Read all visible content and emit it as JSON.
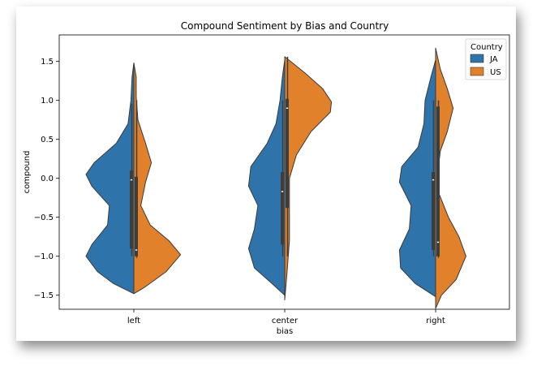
{
  "chart_data": {
    "type": "violin",
    "title": "Compound Sentiment by Bias and Country",
    "xlabel": "bias",
    "ylabel": "compound",
    "categories": [
      "left",
      "center",
      "right"
    ],
    "ylim": [
      -1.68,
      1.84
    ],
    "yticks": [
      -1.5,
      -1.0,
      -0.5,
      0.0,
      0.5,
      1.0,
      1.5
    ],
    "ytick_labels": [
      "−1.5",
      "−1.0",
      "−0.5",
      "0.0",
      "0.5",
      "1.0",
      "1.5"
    ],
    "legend": {
      "title": "Country",
      "position": "top-right"
    },
    "series": [
      {
        "name": "JA",
        "color": "#2e74ab",
        "violins": [
          {
            "ymin": -1.48,
            "ymax": 1.48,
            "median": -0.02,
            "q1": -0.9,
            "q3": 0.1,
            "whisker_low": -1.0,
            "whisker_high": 0.96,
            "profile": [
              [
                -1.48,
                0
              ],
              [
                -1.35,
                0.35
              ],
              [
                -1.2,
                0.62
              ],
              [
                -1.0,
                0.82
              ],
              [
                -0.85,
                0.72
              ],
              [
                -0.6,
                0.45
              ],
              [
                -0.35,
                0.42
              ],
              [
                -0.1,
                0.72
              ],
              [
                0.05,
                0.82
              ],
              [
                0.2,
                0.68
              ],
              [
                0.45,
                0.3
              ],
              [
                0.7,
                0.1
              ],
              [
                1.0,
                0.05
              ],
              [
                1.3,
                0.03
              ],
              [
                1.48,
                0
              ]
            ]
          },
          {
            "ymin": -1.5,
            "ymax": 1.52,
            "median": -0.17,
            "q1": -0.85,
            "q3": 0.08,
            "whisker_low": -1.0,
            "whisker_high": 1.0,
            "profile": [
              [
                -1.5,
                0
              ],
              [
                -1.35,
                0.22
              ],
              [
                -1.15,
                0.52
              ],
              [
                -0.9,
                0.62
              ],
              [
                -0.65,
                0.52
              ],
              [
                -0.35,
                0.46
              ],
              [
                -0.1,
                0.62
              ],
              [
                0.15,
                0.58
              ],
              [
                0.45,
                0.3
              ],
              [
                0.7,
                0.15
              ],
              [
                1.0,
                0.08
              ],
              [
                1.3,
                0.04
              ],
              [
                1.52,
                0
              ]
            ]
          },
          {
            "ymin": -1.52,
            "ymax": 1.52,
            "median": -0.02,
            "q1": -0.92,
            "q3": 0.08,
            "whisker_low": -1.0,
            "whisker_high": 1.0,
            "profile": [
              [
                -1.52,
                0
              ],
              [
                -1.35,
                0.35
              ],
              [
                -1.15,
                0.6
              ],
              [
                -0.92,
                0.62
              ],
              [
                -0.65,
                0.45
              ],
              [
                -0.35,
                0.42
              ],
              [
                -0.05,
                0.62
              ],
              [
                0.15,
                0.58
              ],
              [
                0.4,
                0.3
              ],
              [
                0.7,
                0.2
              ],
              [
                1.0,
                0.18
              ],
              [
                1.3,
                0.08
              ],
              [
                1.52,
                0
              ]
            ]
          }
        ]
      },
      {
        "name": "US",
        "color": "#e1812c",
        "violins": [
          {
            "ymin": -1.48,
            "ymax": 1.48,
            "median": -0.92,
            "q1": -1.0,
            "q3": 0.02,
            "whisker_low": -1.02,
            "whisker_high": 1.0,
            "profile": [
              [
                -1.48,
                0
              ],
              [
                -1.4,
                0.18
              ],
              [
                -1.2,
                0.55
              ],
              [
                -0.98,
                0.8
              ],
              [
                -0.8,
                0.6
              ],
              [
                -0.6,
                0.28
              ],
              [
                -0.35,
                0.12
              ],
              [
                -0.05,
                0.2
              ],
              [
                0.2,
                0.3
              ],
              [
                0.45,
                0.2
              ],
              [
                0.75,
                0.07
              ],
              [
                1.05,
                0.04
              ],
              [
                1.3,
                0.04
              ],
              [
                1.48,
                0
              ]
            ]
          },
          {
            "ymin": -1.56,
            "ymax": 1.56,
            "median": 0.9,
            "q1": -0.38,
            "q3": 1.02,
            "whisker_low": -1.0,
            "whisker_high": 1.56,
            "profile": [
              [
                -1.56,
                0
              ],
              [
                -1.2,
                0.04
              ],
              [
                -0.8,
                0.08
              ],
              [
                -0.4,
                0.08
              ],
              [
                0.0,
                0.08
              ],
              [
                0.3,
                0.2
              ],
              [
                0.6,
                0.45
              ],
              [
                0.85,
                0.78
              ],
              [
                0.98,
                0.8
              ],
              [
                1.15,
                0.65
              ],
              [
                1.35,
                0.35
              ],
              [
                1.5,
                0.1
              ],
              [
                1.56,
                0
              ]
            ]
          },
          {
            "ymin": -1.67,
            "ymax": 1.67,
            "median": -0.82,
            "q1": -1.0,
            "q3": 0.92,
            "whisker_low": -1.02,
            "whisker_high": 1.0,
            "profile": [
              [
                -1.67,
                0
              ],
              [
                -1.5,
                0.1
              ],
              [
                -1.3,
                0.35
              ],
              [
                -1.0,
                0.52
              ],
              [
                -0.75,
                0.4
              ],
              [
                -0.5,
                0.22
              ],
              [
                -0.2,
                0.06
              ],
              [
                0.1,
                0.04
              ],
              [
                0.35,
                0.08
              ],
              [
                0.6,
                0.2
              ],
              [
                0.9,
                0.3
              ],
              [
                1.15,
                0.2
              ],
              [
                1.4,
                0.08
              ],
              [
                1.67,
                0
              ]
            ]
          }
        ]
      }
    ]
  }
}
